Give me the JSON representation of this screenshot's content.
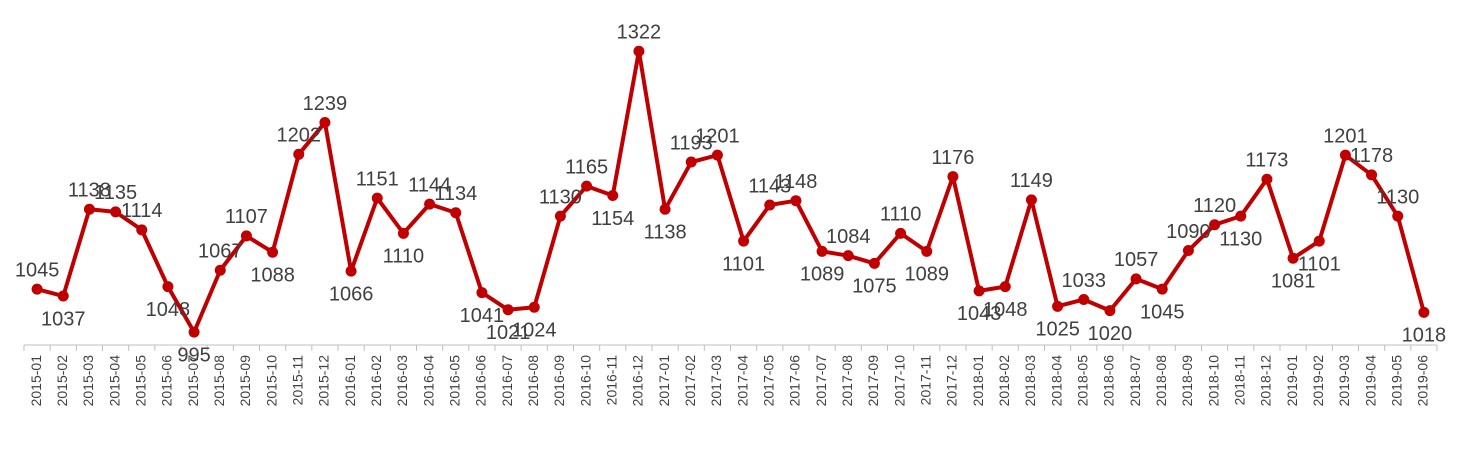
{
  "chart_data": {
    "type": "line",
    "categories": [
      "2015-01",
      "2015-02",
      "2015-03",
      "2015-04",
      "2015-05",
      "2015-06",
      "2015-07",
      "2015-08",
      "2015-09",
      "2015-10",
      "2015-11",
      "2015-12",
      "2016-01",
      "2016-02",
      "2016-03",
      "2016-04",
      "2016-05",
      "2016-06",
      "2016-07",
      "2016-08",
      "2016-09",
      "2016-10",
      "2016-11",
      "2016-12",
      "2017-01",
      "2017-02",
      "2017-03",
      "2017-04",
      "2017-05",
      "2017-06",
      "2017-07",
      "2017-08",
      "2017-09",
      "2017-10",
      "2017-11",
      "2017-12",
      "2018-01",
      "2018-02",
      "2018-03",
      "2018-04",
      "2018-05",
      "2018-06",
      "2018-07",
      "2018-08",
      "2018-09",
      "2018-10",
      "2018-11",
      "2018-12",
      "2019-01",
      "2019-02",
      "2019-03",
      "2019-04",
      "2019-05",
      "2019-06"
    ],
    "values": [
      1045,
      1037,
      1138,
      1135,
      1114,
      1048,
      995,
      1067,
      1107,
      1088,
      1202,
      1239,
      1066,
      1151,
      1110,
      1144,
      1134,
      1041,
      1021,
      1024,
      1130,
      1165,
      1154,
      1322,
      1138,
      1193,
      1201,
      1101,
      1143,
      1148,
      1089,
      1084,
      1075,
      1110,
      1089,
      1176,
      1043,
      1048,
      1149,
      1025,
      1033,
      1020,
      1057,
      1045,
      1090,
      1120,
      1130,
      1173,
      1081,
      1101,
      1201,
      1178,
      1130,
      1018
    ],
    "color": "#c00000",
    "ylim": [
      980,
      1370
    ]
  }
}
